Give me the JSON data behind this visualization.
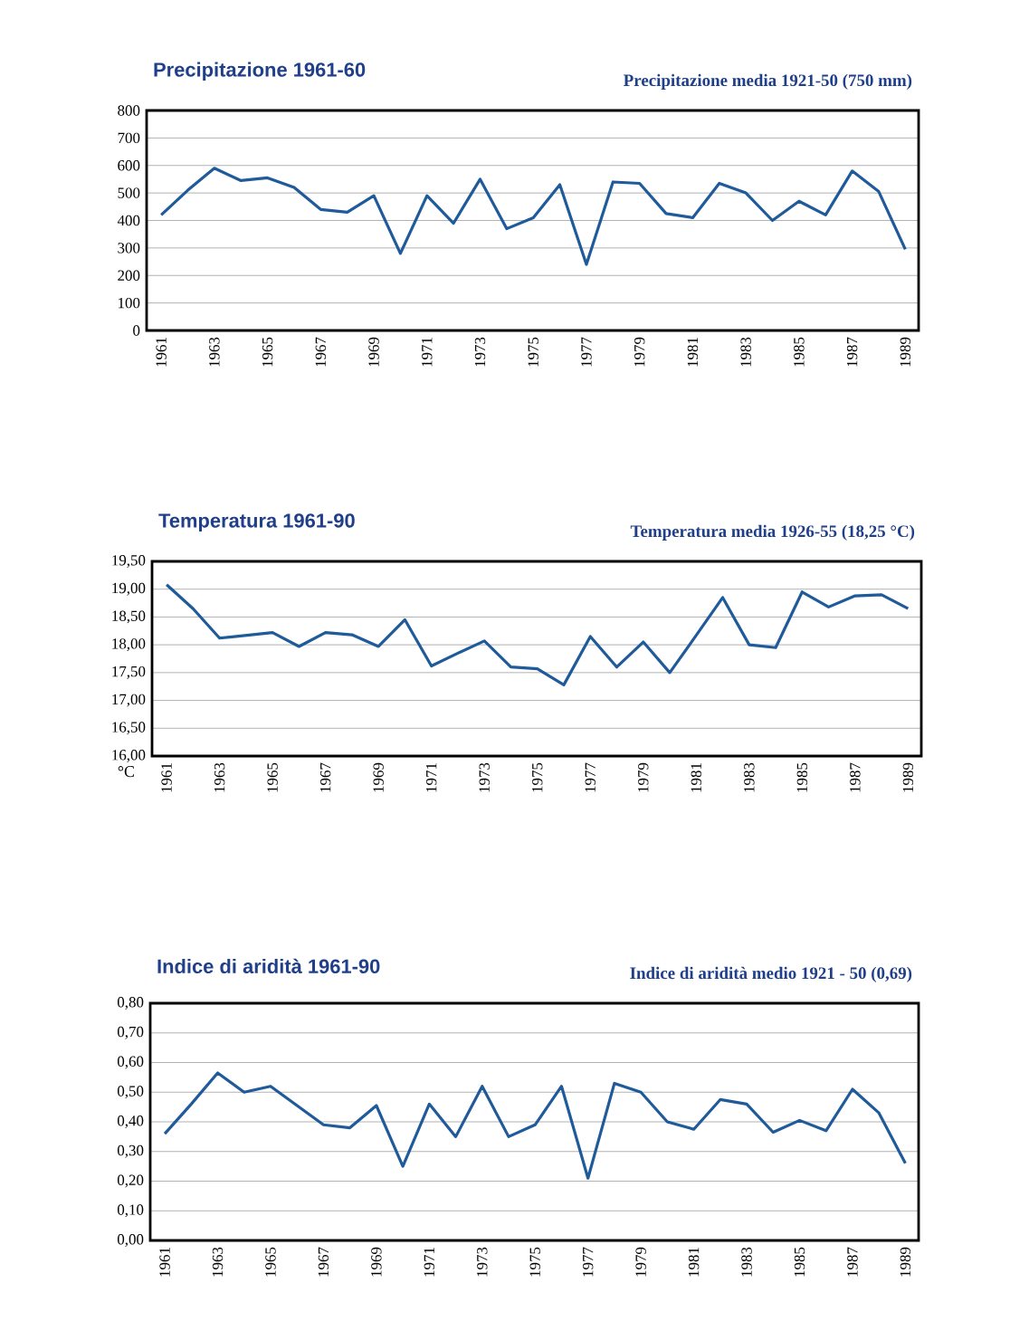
{
  "chart_data": [
    {
      "type": "line",
      "title": "Precipitazione 1961-60",
      "subtitle": "Precipitazione media 1921-50 (750 mm)",
      "categories": [
        "1961",
        null,
        "1963",
        null,
        "1965",
        null,
        "1967",
        null,
        "1969",
        null,
        "1971",
        null,
        "1973",
        null,
        "1975",
        null,
        "1977",
        null,
        "1979",
        null,
        "1981",
        null,
        "1983",
        null,
        "1985",
        null,
        "1987",
        null,
        "1989"
      ],
      "values": [
        420,
        510,
        590,
        545,
        555,
        520,
        440,
        430,
        490,
        280,
        490,
        390,
        550,
        370,
        410,
        530,
        240,
        540,
        535,
        425,
        410,
        535,
        500,
        400,
        470,
        420,
        580,
        505,
        295
      ],
      "color": "#1f5a9a",
      "ylim": [
        0,
        800
      ],
      "yticks": [
        0,
        100,
        200,
        300,
        400,
        500,
        600,
        700,
        800
      ],
      "grid": "y"
    },
    {
      "type": "line",
      "title": "Temperatura 1961-90",
      "subtitle": "Temperatura media 1926-55 (18,25 °C)",
      "ylabel": "°C",
      "categories": [
        "1961",
        null,
        "1963",
        null,
        "1965",
        null,
        "1967",
        null,
        "1969",
        null,
        "1971",
        null,
        "1973",
        null,
        "1975",
        null,
        "1977",
        null,
        "1979",
        null,
        "1981",
        null,
        "1983",
        null,
        "1985",
        null,
        "1987",
        null,
        "1989"
      ],
      "values": [
        19.08,
        18.65,
        18.12,
        18.17,
        18.22,
        17.97,
        18.22,
        18.18,
        17.97,
        18.45,
        17.62,
        17.85,
        18.07,
        17.6,
        17.57,
        17.28,
        18.15,
        17.6,
        18.05,
        17.5,
        18.17,
        18.85,
        18.0,
        17.95,
        18.95,
        18.68,
        18.88,
        18.9,
        18.65
      ],
      "color": "#1f5a9a",
      "ylim": [
        16,
        19.5
      ],
      "yticks": [
        {
          "value": 16,
          "label": "16,00"
        },
        {
          "value": 16.5,
          "label": "16,50"
        },
        {
          "value": 17,
          "label": "17,00"
        },
        {
          "value": 17.5,
          "label": "17,50"
        },
        {
          "value": 18,
          "label": "18,00"
        },
        {
          "value": 18.5,
          "label": "18,50"
        },
        {
          "value": 19,
          "label": "19,00"
        },
        {
          "value": 19.5,
          "label": "19,50"
        }
      ],
      "grid": "y"
    },
    {
      "type": "line",
      "title": "Indice di aridità 1961-90",
      "subtitle": "Indice di aridità medio 1921 - 50 (0,69)",
      "categories": [
        "1961",
        null,
        "1963",
        null,
        "1965",
        null,
        "1967",
        null,
        "1969",
        null,
        "1971",
        null,
        "1973",
        null,
        "1975",
        null,
        "1977",
        null,
        "1979",
        null,
        "1981",
        null,
        "1983",
        null,
        "1985",
        null,
        "1987",
        null,
        "1989"
      ],
      "values": [
        0.36,
        0.46,
        0.565,
        0.5,
        0.52,
        0.455,
        0.39,
        0.38,
        0.455,
        0.25,
        0.46,
        0.35,
        0.52,
        0.35,
        0.39,
        0.52,
        0.21,
        0.53,
        0.5,
        0.4,
        0.375,
        0.475,
        0.46,
        0.365,
        0.405,
        0.37,
        0.51,
        0.43,
        0.26
      ],
      "color": "#1f5a9a",
      "ylim": [
        0,
        0.8
      ],
      "yticks": [
        {
          "value": 0,
          "label": "0,00"
        },
        {
          "value": 0.1,
          "label": "0,10"
        },
        {
          "value": 0.2,
          "label": "0,20"
        },
        {
          "value": 0.3,
          "label": "0,30"
        },
        {
          "value": 0.4,
          "label": "0,40"
        },
        {
          "value": 0.5,
          "label": "0,50"
        },
        {
          "value": 0.6,
          "label": "0,60"
        },
        {
          "value": 0.7,
          "label": "0,70"
        },
        {
          "value": 0.8,
          "label": "0,80"
        }
      ],
      "grid": "y"
    }
  ]
}
